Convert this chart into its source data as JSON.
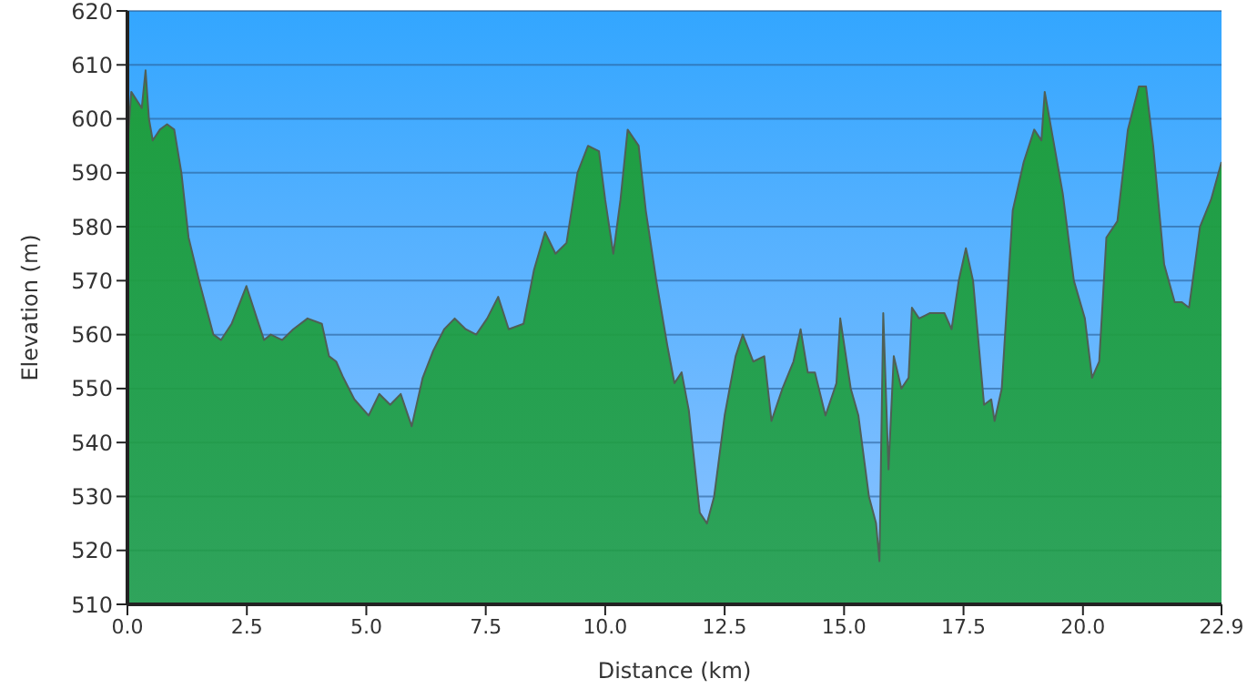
{
  "chart_data": {
    "type": "area",
    "xlabel": "Distance (km)",
    "ylabel": "Elevation (m)",
    "xlim": [
      0,
      22.9
    ],
    "ylim": [
      510,
      620
    ],
    "xticks": [
      {
        "value": 0,
        "label": "0.0"
      },
      2.5,
      {
        "value": 5,
        "label": "5.0"
      },
      7.5,
      {
        "value": 10,
        "label": "10.0"
      },
      12.5,
      {
        "value": 15,
        "label": "15.0"
      },
      17.5,
      {
        "value": 20,
        "label": "20.0"
      },
      22.9
    ],
    "yticks": [
      510,
      520,
      530,
      540,
      550,
      560,
      570,
      580,
      590,
      600,
      610,
      620
    ],
    "grid": "y",
    "marker": "none",
    "line_style": "solid",
    "series": [
      {
        "color": "#1f9e3f",
        "x": [
          0,
          0.08,
          0.3,
          0.38,
          0.45,
          0.53,
          0.68,
          0.83,
          0.98,
          1.13,
          1.28,
          1.5,
          1.8,
          1.96,
          2.18,
          2.49,
          2.71,
          2.86,
          3.0,
          3.24,
          3.47,
          3.77,
          4.07,
          4.22,
          4.37,
          4.52,
          4.75,
          5.05,
          5.27,
          5.5,
          5.72,
          5.95,
          6.18,
          6.4,
          6.63,
          6.85,
          7.08,
          7.3,
          7.53,
          7.76,
          7.98,
          8.29,
          8.51,
          8.74,
          8.96,
          9.19,
          9.42,
          9.64,
          9.87,
          10.0,
          10.17,
          10.32,
          10.47,
          10.7,
          10.85,
          11.07,
          11.3,
          11.45,
          11.6,
          11.75,
          11.98,
          12.13,
          12.28,
          12.5,
          12.73,
          12.88,
          13.1,
          13.33,
          13.48,
          13.71,
          13.94,
          14.09,
          14.24,
          14.39,
          14.61,
          14.84,
          14.92,
          15.14,
          15.3,
          15.52,
          15.67,
          15.74,
          15.82,
          15.93,
          16.04,
          16.2,
          16.35,
          16.42,
          16.57,
          16.8,
          17.1,
          17.25,
          17.4,
          17.55,
          17.7,
          17.93,
          18.08,
          18.15,
          18.3,
          18.53,
          18.76,
          18.98,
          19.13,
          19.2,
          19.36,
          19.58,
          19.81,
          20.04,
          20.19,
          20.34,
          20.49,
          20.72,
          20.94,
          21.17,
          21.32,
          21.47,
          21.7,
          21.92,
          22.07,
          22.22,
          22.45,
          22.68,
          22.9
        ],
        "values": [
          595,
          605,
          602,
          609,
          600,
          596,
          598,
          599,
          598,
          590,
          578,
          570,
          560,
          559,
          562,
          569,
          563,
          559,
          560,
          559,
          561,
          563,
          562,
          556,
          555,
          552,
          548,
          545,
          549,
          547,
          549,
          543,
          552,
          557,
          561,
          563,
          561,
          560,
          563,
          567,
          561,
          562,
          572,
          579,
          575,
          577,
          590,
          595,
          594,
          585,
          575,
          585,
          598,
          595,
          583,
          570,
          558,
          551,
          553,
          546,
          527,
          525,
          530,
          545,
          556,
          560,
          555,
          556,
          544,
          550,
          555,
          561,
          553,
          553,
          545,
          551,
          563,
          550,
          545,
          530,
          525,
          518,
          564,
          535,
          556,
          550,
          552,
          565,
          563,
          564,
          564,
          561,
          570,
          576,
          570,
          547,
          548,
          544,
          550,
          583,
          592,
          598,
          596,
          605,
          597,
          586,
          570,
          563,
          552,
          555,
          578,
          581,
          598,
          606,
          606,
          595,
          573,
          566,
          566,
          565,
          580,
          585,
          592
        ]
      }
    ]
  }
}
